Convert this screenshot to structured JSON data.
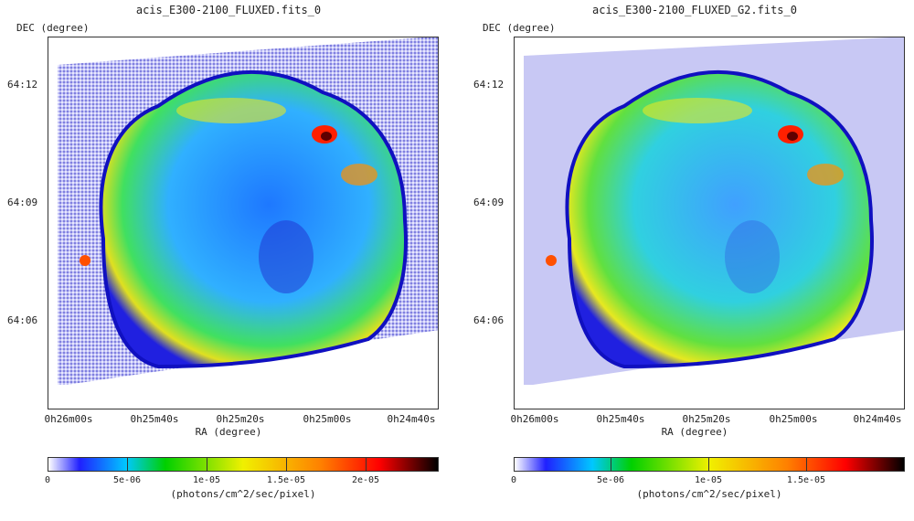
{
  "panels": [
    {
      "title": "acis_E300-2100_FLUXED.fits_0",
      "y_label": "DEC (degree)",
      "x_label": "RA (degree)",
      "y_ticks": [
        "64:12",
        "64:09",
        "64:06"
      ],
      "x_ticks": [
        "0h26m00s",
        "0h25m40s",
        "0h25m20s",
        "0h25m00s",
        "0h24m40s"
      ],
      "colorbar_ticks": [
        "0",
        "5e-06",
        "1e-05",
        "1.5e-05",
        "2e-05"
      ],
      "colorbar_label": "(photons/cm^2/sec/pixel)"
    },
    {
      "title": "acis_E300-2100_FLUXED_G2.fits_0",
      "y_label": "DEC (degree)",
      "x_label": "RA (degree)",
      "y_ticks": [
        "64:12",
        "64:09",
        "64:06"
      ],
      "x_ticks": [
        "0h26m00s",
        "0h25m40s",
        "0h25m20s",
        "0h25m00s",
        "0h24m40s"
      ],
      "colorbar_ticks": [
        "0",
        "5e-06",
        "1e-05",
        "1.5e-05"
      ],
      "colorbar_label": "(photons/cm^2/sec/pixel)"
    }
  ],
  "colors": {
    "colormap": [
      "#ffffff",
      "#2020ff",
      "#00c8ff",
      "#00d000",
      "#f0f000",
      "#ff8000",
      "#ff0000",
      "#000000"
    ],
    "background_sky": "#b8b8f0"
  }
}
